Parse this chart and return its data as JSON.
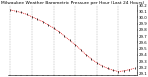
{
  "title": "Milwaukee Weather Barometric Pressure per Hour (Last 24 Hours)",
  "hours": [
    0,
    1,
    2,
    3,
    4,
    5,
    6,
    7,
    8,
    9,
    10,
    11,
    12,
    13,
    14,
    15,
    16,
    17,
    18,
    19,
    20,
    21,
    22,
    23
  ],
  "pressure": [
    30.12,
    30.1,
    30.08,
    30.05,
    30.01,
    29.97,
    29.93,
    29.88,
    29.83,
    29.77,
    29.7,
    29.63,
    29.56,
    29.48,
    29.4,
    29.33,
    29.27,
    29.22,
    29.18,
    29.15,
    29.13,
    29.14,
    29.16,
    29.18
  ],
  "ylim_min": 29.08,
  "ylim_max": 30.18,
  "yticks": [
    29.1,
    29.2,
    29.3,
    29.4,
    29.5,
    29.6,
    29.7,
    29.8,
    29.9,
    30.0,
    30.1,
    30.2
  ],
  "line_color": "#dd0000",
  "marker_color": "#000000",
  "bg_color": "#ffffff",
  "grid_color": "#888888",
  "title_fontsize": 3.2,
  "tick_fontsize": 2.8,
  "grid_interval": 4
}
